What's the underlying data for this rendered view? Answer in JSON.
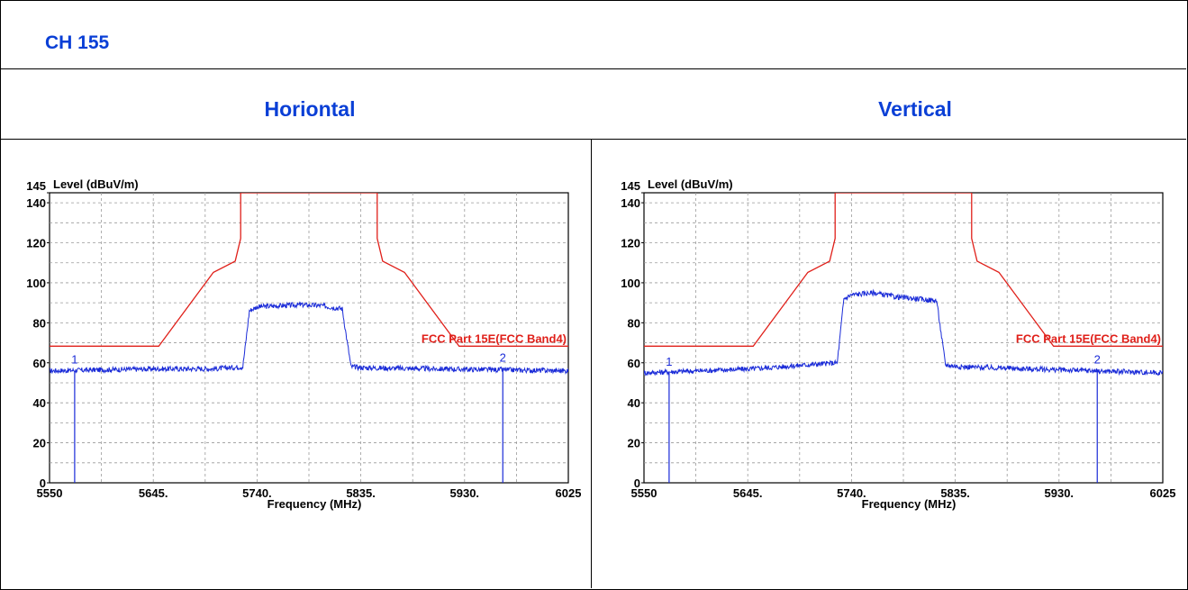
{
  "page": {
    "channel_title": "CH 155",
    "columns": [
      "Horiontal",
      "Vertical"
    ]
  },
  "colors": {
    "heading": "#0a3fd6",
    "limit": "#e0201a",
    "trace": "#1a2bd8",
    "grid": "#9a9a9a"
  },
  "chart_data": [
    {
      "type": "line",
      "title": "",
      "ylabel": "Level (dBuV/m)",
      "xlabel": "Frequency (MHz)",
      "xlim": [
        5550,
        6025
      ],
      "ylim": [
        0,
        145
      ],
      "x_tick_labels": [
        "5550",
        "5645.",
        "5740.",
        "5835.",
        "5930.",
        "6025"
      ],
      "x_ticks": [
        5550,
        5645,
        5740,
        5835,
        5930,
        6025
      ],
      "y_tick_labels": [
        "0",
        "20",
        "40",
        "60",
        "80",
        "100",
        "120",
        "140",
        "145"
      ],
      "y_ticks": [
        0,
        20,
        40,
        60,
        80,
        100,
        120,
        140,
        145
      ],
      "grid": true,
      "series": [
        {
          "name": "FCC Part 15E(FCC Band4)",
          "role": "limit",
          "x": [
            5550,
            5650,
            5700,
            5720,
            5725,
            5725,
            5850,
            5850,
            5855,
            5875,
            5925,
            6025
          ],
          "y": [
            68.3,
            68.3,
            105.2,
            110.8,
            122.2,
            145,
            145,
            122.2,
            110.8,
            105.2,
            68.3,
            68.3
          ]
        },
        {
          "role": "measured",
          "x": [
            5550,
            5600,
            5650,
            5700,
            5727,
            5733,
            5740,
            5760,
            5780,
            5800,
            5818,
            5826,
            5840,
            5900,
            5960,
            6025
          ],
          "y": [
            56,
            56.5,
            57,
            57,
            58,
            86,
            88,
            88.5,
            89,
            88.5,
            87,
            58,
            57.5,
            57,
            56.5,
            56
          ]
        }
      ],
      "markers": [
        {
          "label": "1",
          "x": 5573,
          "y": 56
        },
        {
          "label": "2",
          "x": 5965,
          "y": 57
        }
      ]
    },
    {
      "type": "line",
      "title": "",
      "ylabel": "Level (dBuV/m)",
      "xlabel": "Frequency (MHz)",
      "xlim": [
        5550,
        6025
      ],
      "ylim": [
        0,
        145
      ],
      "x_tick_labels": [
        "5550",
        "5645.",
        "5740.",
        "5835.",
        "5930.",
        "6025"
      ],
      "x_ticks": [
        5550,
        5645,
        5740,
        5835,
        5930,
        6025
      ],
      "y_tick_labels": [
        "0",
        "20",
        "40",
        "60",
        "80",
        "100",
        "120",
        "140",
        "145"
      ],
      "y_ticks": [
        0,
        20,
        40,
        60,
        80,
        100,
        120,
        140,
        145
      ],
      "grid": true,
      "series": [
        {
          "name": "FCC Part 15E(FCC Band4)",
          "role": "limit",
          "x": [
            5550,
            5650,
            5700,
            5720,
            5725,
            5725,
            5850,
            5850,
            5855,
            5875,
            5925,
            6025
          ],
          "y": [
            68.3,
            68.3,
            105.2,
            110.8,
            122.2,
            145,
            145,
            122.2,
            110.8,
            105.2,
            68.3,
            68.3
          ]
        },
        {
          "role": "measured",
          "x": [
            5550,
            5600,
            5650,
            5700,
            5727,
            5733,
            5740,
            5760,
            5780,
            5800,
            5818,
            5826,
            5840,
            5900,
            5960,
            6025
          ],
          "y": [
            55,
            56,
            57,
            59,
            60,
            92,
            94,
            95,
            93,
            92,
            91,
            59,
            58,
            57,
            56,
            55
          ]
        }
      ],
      "markers": [
        {
          "label": "1",
          "x": 5573,
          "y": 55
        },
        {
          "label": "2",
          "x": 5965,
          "y": 56
        }
      ]
    }
  ]
}
